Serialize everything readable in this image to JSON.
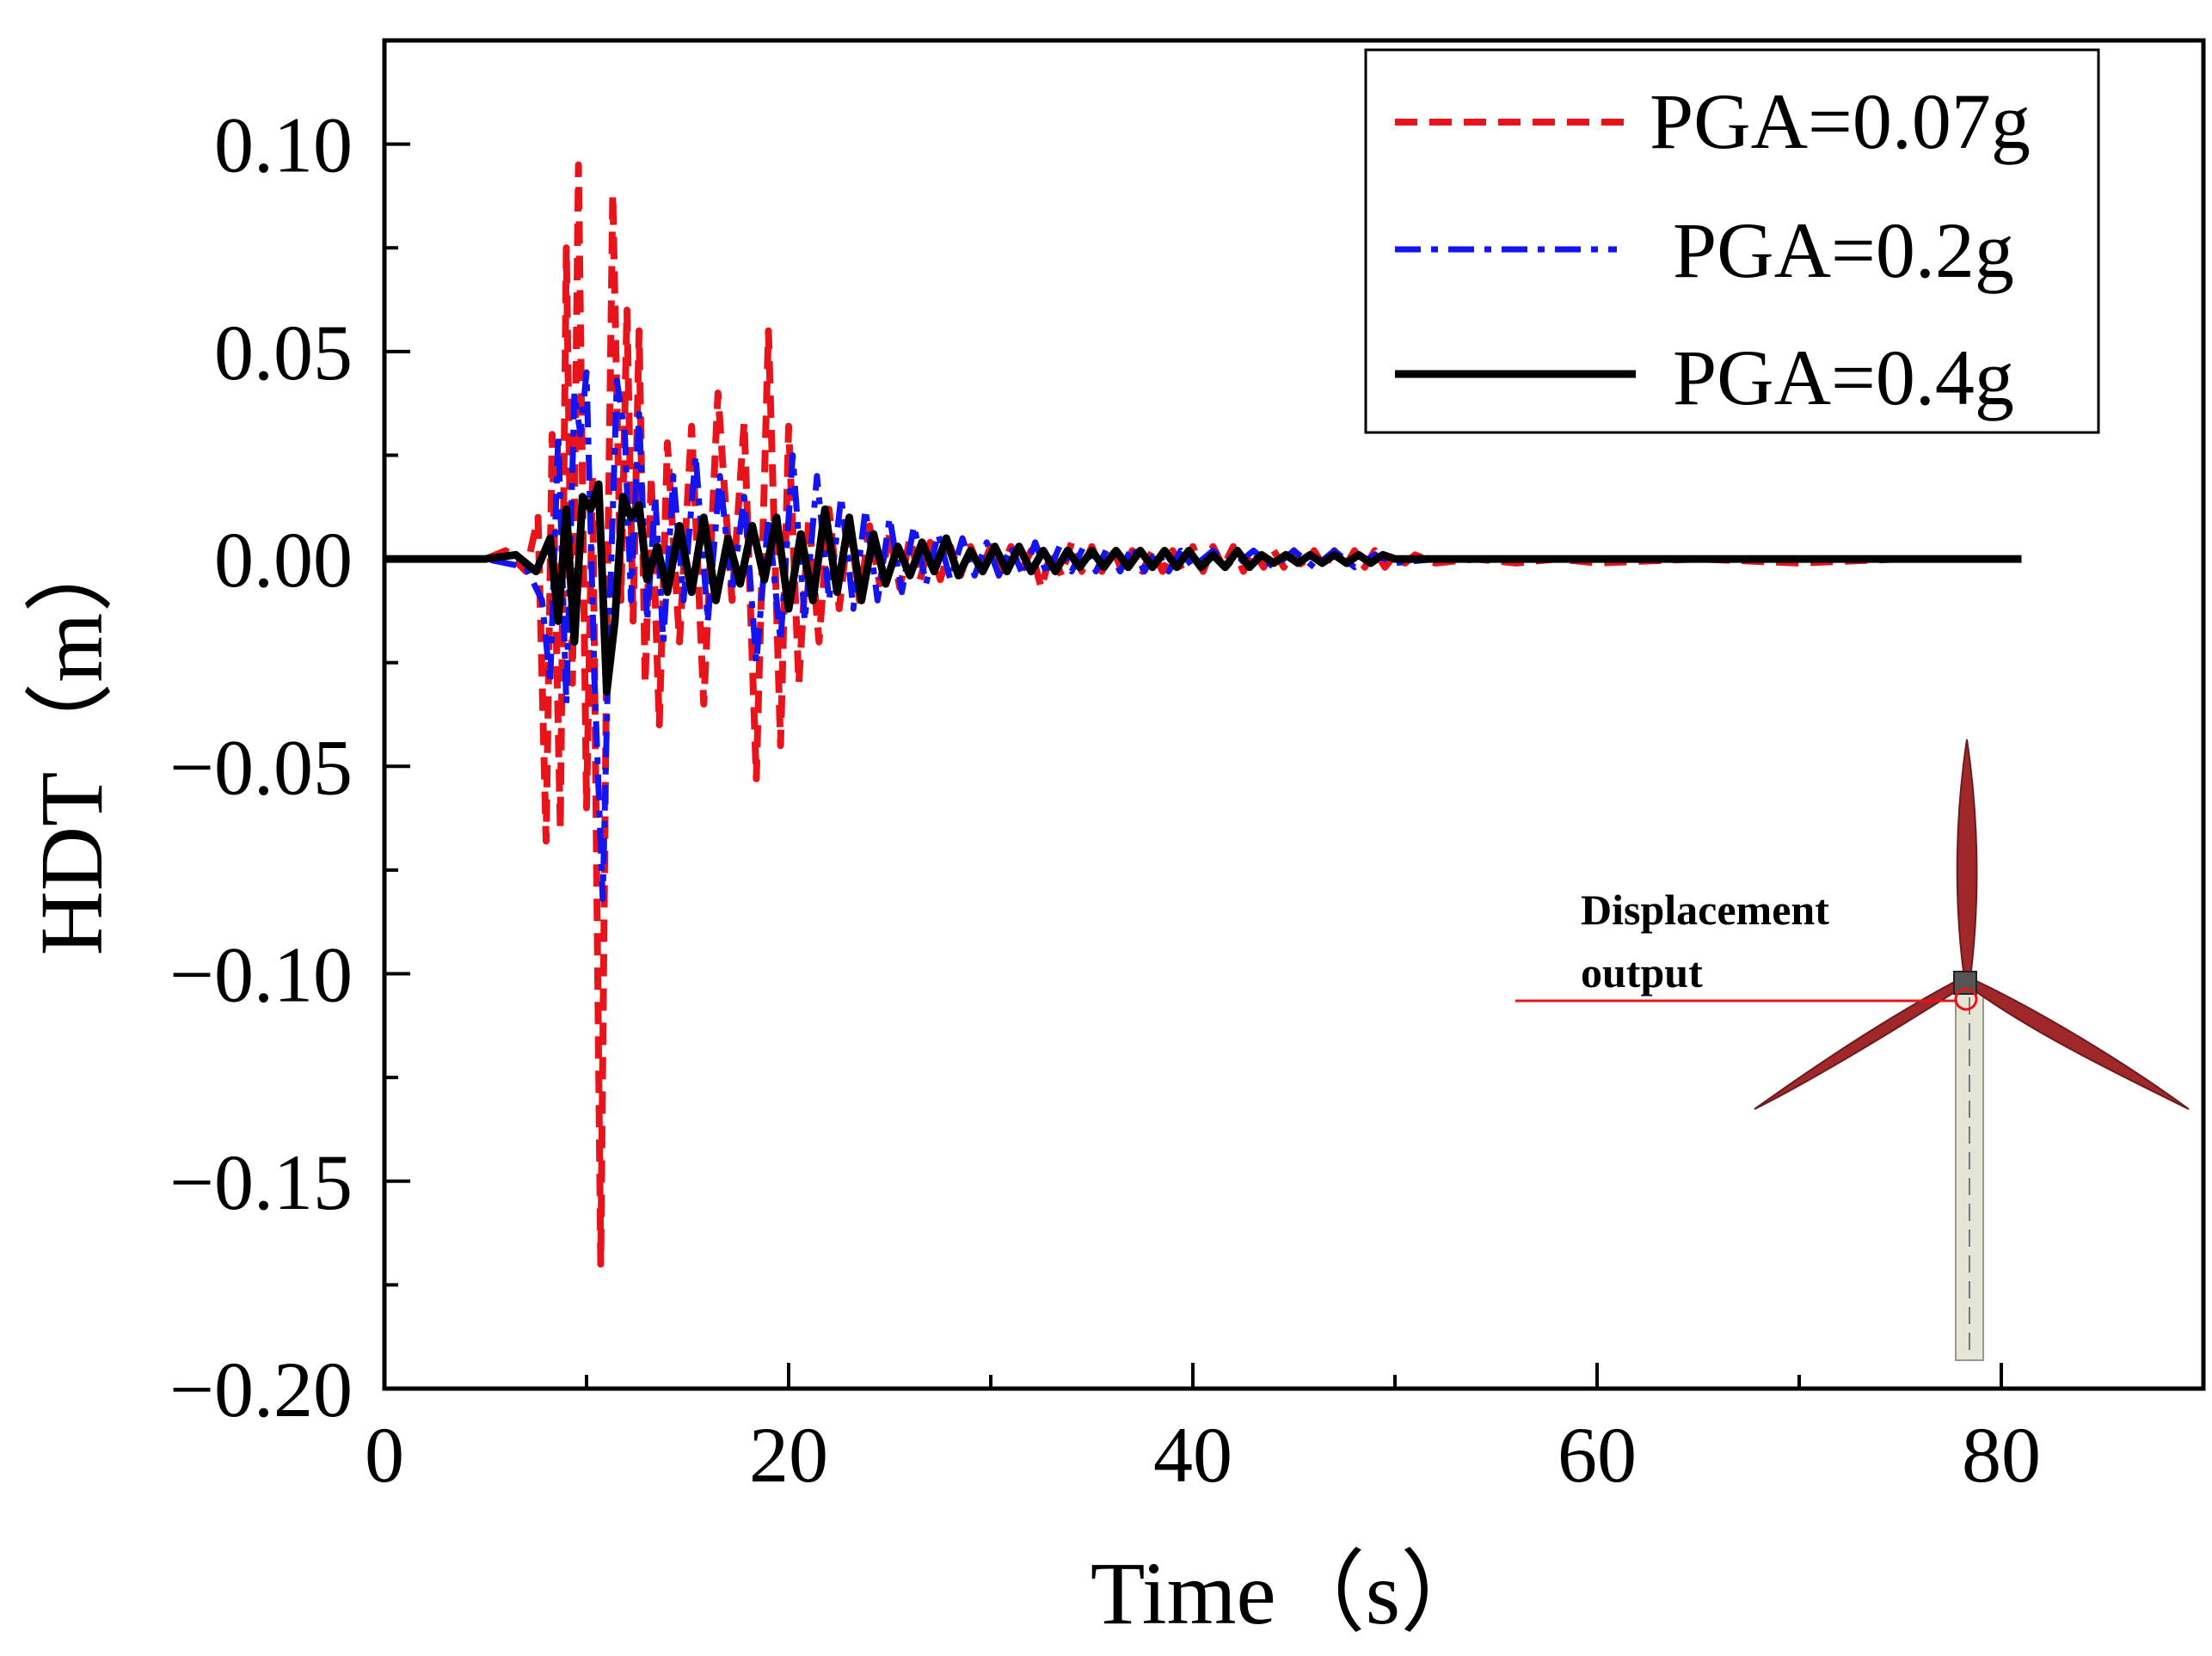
{
  "chart_data": {
    "type": "line",
    "title": "",
    "xlabel": "Time（s）",
    "ylabel": "HDT（m）",
    "xlim": [
      0,
      90
    ],
    "ylim": [
      -0.2,
      0.125
    ],
    "x_ticks": [
      0,
      20,
      40,
      60,
      80
    ],
    "x_tick_labels": [
      "0",
      "20",
      "40",
      "60",
      "80"
    ],
    "y_ticks": [
      -0.2,
      -0.15,
      -0.1,
      -0.05,
      0.0,
      0.05,
      0.1
    ],
    "y_tick_labels": [
      "−0.20",
      "−0.15",
      "−0.10",
      "−0.05",
      "0.00",
      "0.05",
      "0.10"
    ],
    "grid": false,
    "legend_position": "top-right",
    "series": [
      {
        "name": "PGA=0.07g",
        "color": "#e8141c",
        "style": "dashed",
        "x": [
          0,
          5,
          6,
          7,
          7.6,
          8.0,
          8.3,
          8.7,
          9.0,
          9.3,
          9.6,
          10.0,
          10.3,
          10.7,
          11.0,
          11.3,
          11.7,
          12.0,
          12.3,
          12.6,
          12.9,
          13.2,
          13.6,
          14.0,
          14.6,
          15.2,
          15.8,
          16.5,
          17.2,
          17.8,
          18.4,
          19.0,
          19.6,
          20.0,
          20.5,
          21.0,
          21.5,
          22.0,
          22.5,
          23.0,
          23.5,
          24.0,
          24.5,
          25.0,
          25.5,
          26.0,
          26.5,
          27.0,
          27.5,
          28.0,
          28.5,
          29.0,
          29.5,
          30.0,
          30.5,
          31.0,
          31.5,
          32.0,
          32.5,
          33.0,
          33.5,
          34.0,
          34.5,
          35.0,
          35.5,
          36.0,
          36.5,
          37.0,
          37.5,
          38.0,
          38.5,
          39.0,
          39.5,
          40.0,
          40.5,
          41.0,
          41.5,
          42.0,
          42.5,
          43.0,
          43.5,
          44.0,
          44.5,
          45.0,
          45.5,
          46.0,
          46.5,
          47.0,
          47.5,
          48.0,
          48.5,
          49.0,
          49.5,
          50.0,
          50.5,
          51.0,
          52.0,
          54.0,
          56.0,
          58.0,
          60.0,
          65.0,
          70.0,
          75.0,
          80.0,
          81.0
        ],
        "y": [
          0.0,
          0.0,
          0.002,
          -0.003,
          0.01,
          -0.068,
          0.03,
          -0.065,
          0.075,
          -0.03,
          0.095,
          -0.06,
          0.02,
          -0.17,
          -0.02,
          0.088,
          -0.01,
          0.06,
          -0.015,
          0.055,
          -0.03,
          0.02,
          -0.04,
          0.028,
          -0.02,
          0.032,
          -0.035,
          0.04,
          -0.01,
          0.033,
          -0.053,
          0.055,
          -0.045,
          0.032,
          -0.03,
          0.01,
          -0.02,
          0.012,
          -0.012,
          0.01,
          -0.01,
          0.008,
          -0.006,
          0.006,
          -0.007,
          0.005,
          -0.005,
          0.004,
          -0.005,
          0.003,
          -0.004,
          0.003,
          -0.003,
          0.003,
          -0.003,
          0.003,
          -0.003,
          0.002,
          -0.007,
          0.002,
          -0.004,
          0.004,
          -0.003,
          0.003,
          -0.003,
          0.003,
          -0.003,
          0.002,
          -0.003,
          0.002,
          -0.003,
          0.002,
          -0.003,
          0.003,
          -0.003,
          0.003,
          -0.002,
          0.003,
          -0.003,
          0.002,
          -0.002,
          0.002,
          -0.002,
          0.002,
          -0.002,
          0.002,
          -0.002,
          0.002,
          -0.002,
          0.002,
          -0.002,
          0.002,
          -0.002,
          0.001,
          -0.001,
          0.001,
          -0.001,
          0.0,
          -0.001,
          0.0,
          -0.001,
          0.0,
          -0.001,
          0.0,
          0.0,
          0.0
        ]
      },
      {
        "name": "PGA=0.2g",
        "color": "#1414f0",
        "style": "dashdot",
        "x": [
          0,
          5,
          7,
          7.8,
          8.2,
          8.6,
          9.0,
          9.4,
          9.7,
          10.0,
          10.4,
          10.8,
          11.1,
          11.5,
          11.9,
          12.2,
          12.6,
          13.0,
          13.4,
          13.8,
          14.3,
          14.8,
          15.4,
          16.0,
          16.6,
          17.2,
          17.8,
          18.4,
          19.0,
          19.6,
          20.2,
          20.8,
          21.4,
          22.0,
          22.6,
          23.2,
          23.8,
          24.4,
          25.0,
          25.6,
          26.2,
          26.8,
          27.4,
          28.0,
          28.6,
          29.2,
          29.8,
          30.4,
          31.0,
          31.6,
          32.2,
          32.8,
          33.4,
          34.0,
          34.6,
          35.2,
          35.8,
          36.4,
          37.0,
          37.6,
          38.2,
          38.8,
          39.4,
          40.0,
          41.0,
          42.0,
          43.0,
          44.0,
          45.0,
          46.0,
          47.0,
          48.0,
          49.0,
          50.0,
          52.0,
          55.0,
          60.0,
          65.0,
          70.0,
          75.0,
          80.0,
          81.0
        ],
        "y": [
          0.0,
          0.0,
          -0.002,
          -0.01,
          -0.03,
          0.03,
          -0.035,
          0.04,
          0.03,
          0.045,
          -0.03,
          -0.082,
          -0.02,
          0.043,
          0.03,
          -0.01,
          0.035,
          -0.015,
          0.015,
          -0.02,
          0.02,
          -0.01,
          0.025,
          -0.015,
          0.02,
          -0.008,
          0.015,
          -0.025,
          0.01,
          -0.02,
          0.025,
          -0.015,
          0.02,
          -0.01,
          0.015,
          -0.012,
          0.012,
          -0.01,
          0.01,
          -0.008,
          0.008,
          -0.006,
          0.006,
          -0.005,
          0.005,
          -0.004,
          0.004,
          -0.004,
          0.003,
          -0.004,
          0.004,
          -0.004,
          0.003,
          -0.003,
          0.003,
          -0.003,
          0.003,
          -0.003,
          0.003,
          -0.003,
          0.002,
          -0.003,
          0.002,
          -0.002,
          0.002,
          -0.002,
          0.002,
          -0.002,
          0.002,
          -0.002,
          0.002,
          -0.002,
          0.001,
          -0.001,
          0.0,
          0.0,
          0.0,
          0.0,
          0.0,
          0.0,
          0.0,
          0.0
        ]
      },
      {
        "name": "PGA=0.4g",
        "color": "#000000",
        "style": "solid",
        "x": [
          0,
          5,
          6.5,
          7.5,
          8.2,
          8.6,
          9.0,
          9.4,
          9.8,
          10.2,
          10.6,
          11.0,
          11.4,
          11.8,
          12.2,
          12.6,
          13.0,
          13.5,
          14.0,
          14.6,
          15.2,
          15.8,
          16.4,
          17.0,
          17.6,
          18.2,
          18.8,
          19.4,
          20.0,
          20.6,
          21.2,
          21.8,
          22.4,
          23.0,
          23.6,
          24.2,
          24.8,
          25.4,
          26.0,
          26.6,
          27.2,
          27.8,
          28.4,
          29.0,
          29.6,
          30.2,
          30.8,
          31.4,
          32.0,
          32.6,
          33.2,
          33.8,
          34.4,
          35.0,
          35.6,
          36.2,
          36.8,
          37.4,
          38.0,
          38.6,
          39.2,
          39.8,
          40.4,
          41.0,
          41.6,
          42.2,
          42.8,
          43.4,
          44.0,
          44.6,
          45.2,
          45.8,
          46.4,
          47.0,
          47.6,
          48.2,
          48.8,
          49.4,
          50.0,
          51.0,
          52.0,
          55.0,
          60.0,
          70.0,
          80.0,
          81.0
        ],
        "y": [
          0.0,
          0.0,
          0.001,
          -0.003,
          0.005,
          -0.015,
          0.012,
          -0.02,
          0.015,
          0.012,
          0.018,
          -0.032,
          -0.015,
          0.015,
          0.01,
          0.013,
          -0.005,
          0.003,
          -0.008,
          0.008,
          -0.008,
          0.01,
          -0.01,
          0.005,
          -0.006,
          0.008,
          -0.005,
          0.01,
          -0.012,
          0.006,
          -0.01,
          0.012,
          -0.008,
          0.01,
          -0.01,
          0.006,
          -0.006,
          0.003,
          -0.004,
          0.004,
          -0.003,
          0.005,
          -0.004,
          0.002,
          -0.003,
          0.003,
          -0.003,
          0.003,
          -0.003,
          0.002,
          -0.003,
          0.002,
          -0.002,
          0.002,
          -0.002,
          0.002,
          -0.002,
          0.002,
          -0.002,
          0.002,
          -0.002,
          0.002,
          -0.002,
          0.001,
          -0.002,
          0.002,
          -0.002,
          0.001,
          -0.001,
          0.001,
          -0.001,
          0.001,
          -0.001,
          0.001,
          -0.001,
          0.001,
          -0.001,
          0.001,
          0.0,
          0.0,
          0.0,
          0.0,
          0.0,
          0.0,
          0.0,
          0.0
        ]
      }
    ],
    "annotations": [
      {
        "text": "Displacement",
        "role": "inset-label"
      },
      {
        "text": "output",
        "role": "inset-label"
      }
    ]
  },
  "colors": {
    "blade": "#a0282a",
    "tower": "#e6e4d6",
    "marker": "#e8141c",
    "axis": "#000000"
  }
}
